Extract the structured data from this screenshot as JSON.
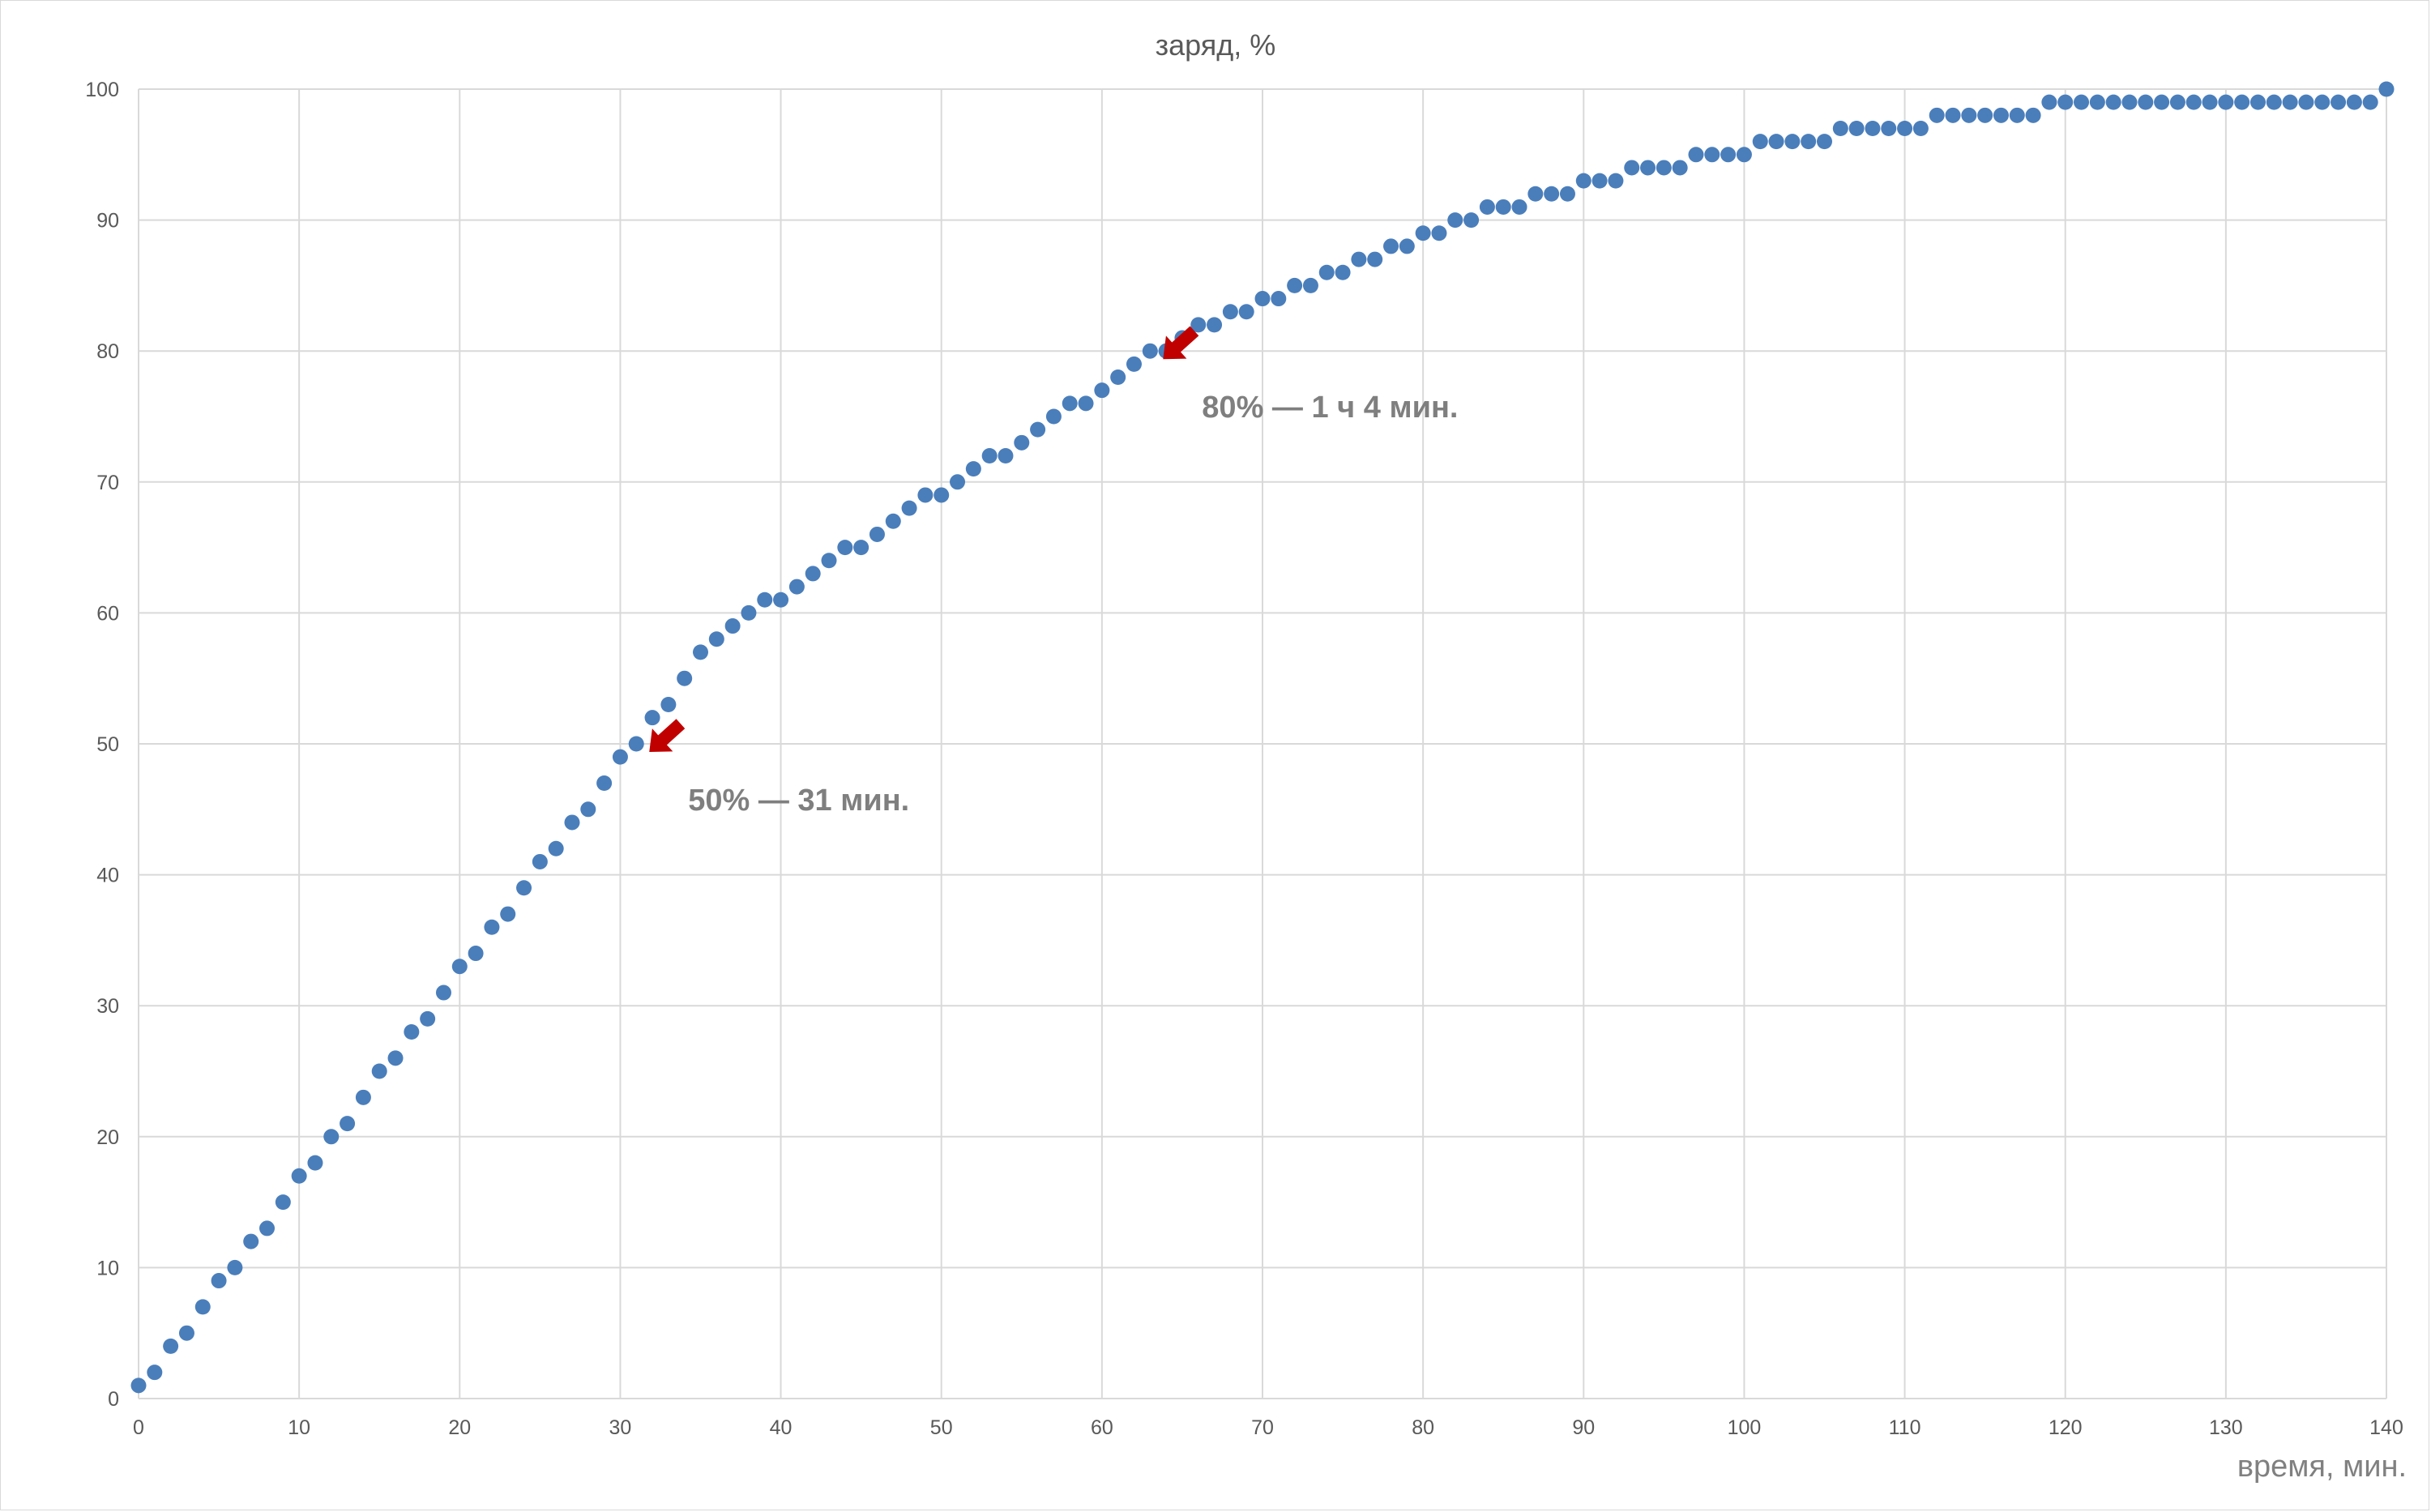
{
  "chart_data": {
    "type": "scatter",
    "title": "заряд, %",
    "xlabel": "время, мин.",
    "ylabel": "",
    "xlim": [
      0,
      140
    ],
    "ylim": [
      0,
      100
    ],
    "x_ticks": [
      0,
      10,
      20,
      30,
      40,
      50,
      60,
      70,
      80,
      90,
      100,
      110,
      120,
      130,
      140
    ],
    "y_ticks": [
      0,
      10,
      20,
      30,
      40,
      50,
      60,
      70,
      80,
      90,
      100
    ],
    "grid": true,
    "legend": "none",
    "marker_color": "#4a7ebb",
    "annotation_color": "#c00000",
    "series": [
      {
        "x": [
          0,
          1,
          2,
          3,
          4,
          5,
          6,
          7,
          8,
          9,
          10,
          11,
          12,
          13,
          14,
          15,
          16,
          17,
          18,
          19,
          20,
          21,
          22,
          23,
          24,
          25,
          26,
          27,
          28,
          29,
          30,
          31,
          32,
          33,
          34,
          35,
          36,
          37,
          38,
          39,
          40,
          41,
          42,
          43,
          44,
          45,
          46,
          47,
          48,
          49,
          50,
          51,
          52,
          53,
          54,
          55,
          56,
          57,
          58,
          59,
          60,
          61,
          62,
          63,
          64,
          65,
          66,
          67,
          68,
          69,
          70,
          71,
          72,
          73,
          74,
          75,
          76,
          77,
          78,
          79,
          80,
          81,
          82,
          83,
          84,
          85,
          86,
          87,
          88,
          89,
          90,
          91,
          92,
          93,
          94,
          95,
          96,
          97,
          98,
          99,
          100,
          101,
          102,
          103,
          104,
          105,
          106,
          107,
          108,
          109,
          110,
          111,
          112,
          113,
          114,
          115,
          116,
          117,
          118,
          119,
          120,
          121,
          122,
          123,
          124,
          125,
          126,
          127,
          128,
          129,
          130,
          131,
          132,
          133,
          134,
          135,
          136,
          137,
          138,
          139,
          140
        ],
        "y": [
          1,
          2,
          4,
          5,
          7,
          9,
          10,
          12,
          13,
          15,
          17,
          18,
          20,
          21,
          23,
          25,
          26,
          28,
          29,
          31,
          33,
          34,
          36,
          37,
          39,
          41,
          42,
          44,
          45,
          47,
          49,
          50,
          52,
          53,
          55,
          57,
          58,
          59,
          60,
          61,
          61,
          62,
          63,
          64,
          65,
          65,
          66,
          67,
          68,
          69,
          69,
          70,
          71,
          72,
          72,
          73,
          74,
          75,
          76,
          76,
          77,
          78,
          79,
          80,
          80,
          81,
          82,
          82,
          83,
          83,
          84,
          84,
          85,
          85,
          86,
          86,
          87,
          87,
          88,
          88,
          89,
          89,
          90,
          90,
          91,
          91,
          91,
          92,
          92,
          92,
          93,
          93,
          93,
          94,
          94,
          94,
          94,
          95,
          95,
          95,
          95,
          96,
          96,
          96,
          96,
          96,
          97,
          97,
          97,
          97,
          97,
          97,
          98,
          98,
          98,
          98,
          98,
          98,
          98,
          99,
          99,
          99,
          99,
          99,
          99,
          99,
          99,
          99,
          99,
          99,
          99,
          99,
          99,
          99,
          99,
          99,
          99,
          99,
          99,
          99,
          100
        ]
      }
    ],
    "annotations": [
      {
        "text": "50% — 31 мин.",
        "x": 31,
        "y": 50
      },
      {
        "text": "80% — 1 ч 4 мин.",
        "x": 63,
        "y": 80
      }
    ]
  }
}
